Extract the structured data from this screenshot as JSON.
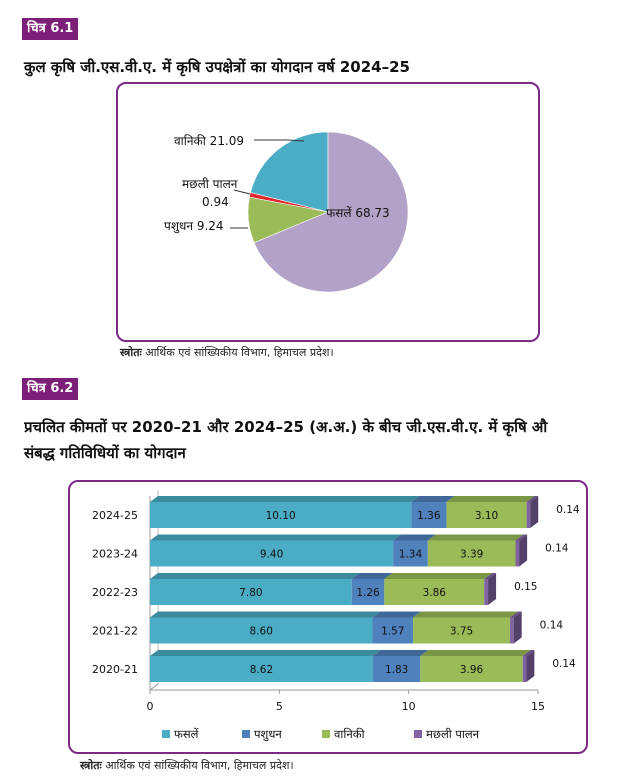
{
  "figure1": {
    "tag": "चित्र 6.1",
    "title": "कुल कृषि जी.एस.वी.ए. में कृषि उपक्षेत्रों का योगदान वर्ष 2024–25",
    "source_label": "स्त्रोतः",
    "source_text": "आर्थिक एवं सांख्यिकीय विभाग, हिमाचल प्रदेश।",
    "labels": {
      "forestry": "वानिकी 21.09",
      "fishing_line1": "मछली पालन",
      "fishing_line2": "0.94",
      "livestock": "पशुधन 9.24",
      "crops": "फसलें 68.73"
    }
  },
  "figure2": {
    "tag": "चित्र 6.2",
    "title_line1": "प्रचलित कीमतों पर 2020–21 और 2024–25 (अ.अ.) के बीच जी.एस.वी.ए. में कृषि औ",
    "title_line2": "संबद्ध गतिविधियों का योगदान",
    "source_label": "स्त्रोतः",
    "source_text": "आर्थिक एवं सांख्यिकीय विभाग, हिमाचल प्रदेश।"
  },
  "colors": {
    "crops": "#4bacc6",
    "livestock": "#4f81bd",
    "forestry": "#9bbb59",
    "fishing": "#8064a2",
    "fishing_pie": "#e3262b",
    "crops_pie": "#b3a2c7",
    "accent": "#7b1f78"
  },
  "chart_data": [
    {
      "type": "pie",
      "slices": [
        {
          "name": "वानिकी",
          "value": 21.09,
          "color": "#4bacc6"
        },
        {
          "name": "मछली पालन",
          "value": 0.94,
          "color": "#e3262b"
        },
        {
          "name": "पशुधन",
          "value": 9.24,
          "color": "#9bbb59"
        },
        {
          "name": "फसलें",
          "value": 68.73,
          "color": "#b3a2c7"
        }
      ]
    },
    {
      "type": "bar",
      "orientation": "horizontal",
      "stacked": true,
      "categories": [
        "2024-25",
        "2023-24",
        "2022-23",
        "2021-22",
        "2020-21"
      ],
      "series": [
        {
          "name": "फसलें",
          "values": [
            10.1,
            9.4,
            7.8,
            8.6,
            8.62
          ],
          "labels": [
            "10.10",
            "9.40",
            "7.80",
            "8.60",
            "8.62"
          ],
          "color": "#4bacc6"
        },
        {
          "name": "पशुधन",
          "values": [
            1.36,
            1.34,
            1.26,
            1.57,
            1.83
          ],
          "labels": [
            "1.36",
            "1.34",
            "1.26",
            "1.57",
            "1.83"
          ],
          "color": "#4f81bd"
        },
        {
          "name": "वानिकी",
          "values": [
            3.1,
            3.39,
            3.86,
            3.75,
            3.96
          ],
          "labels": [
            "3.10",
            "3.39",
            "3.86",
            "3.75",
            "3.96"
          ],
          "color": "#9bbb59"
        },
        {
          "name": "मछली पालन",
          "values": [
            0.14,
            0.14,
            0.15,
            0.14,
            0.14
          ],
          "labels": [
            "0.14",
            "0.14",
            "0.15",
            "0.14",
            "0.14"
          ],
          "color": "#8064a2"
        }
      ],
      "xlim": [
        0,
        15
      ],
      "xticks": [
        "0",
        "5",
        "10",
        "15"
      ],
      "legend_position": "bottom"
    }
  ]
}
